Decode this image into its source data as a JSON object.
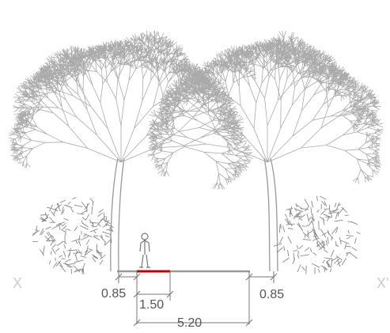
{
  "markers": [
    "X",
    "X'"
  ],
  "dimensions": [
    "0.85",
    "1.50",
    "0.85",
    "5.20"
  ]
}
